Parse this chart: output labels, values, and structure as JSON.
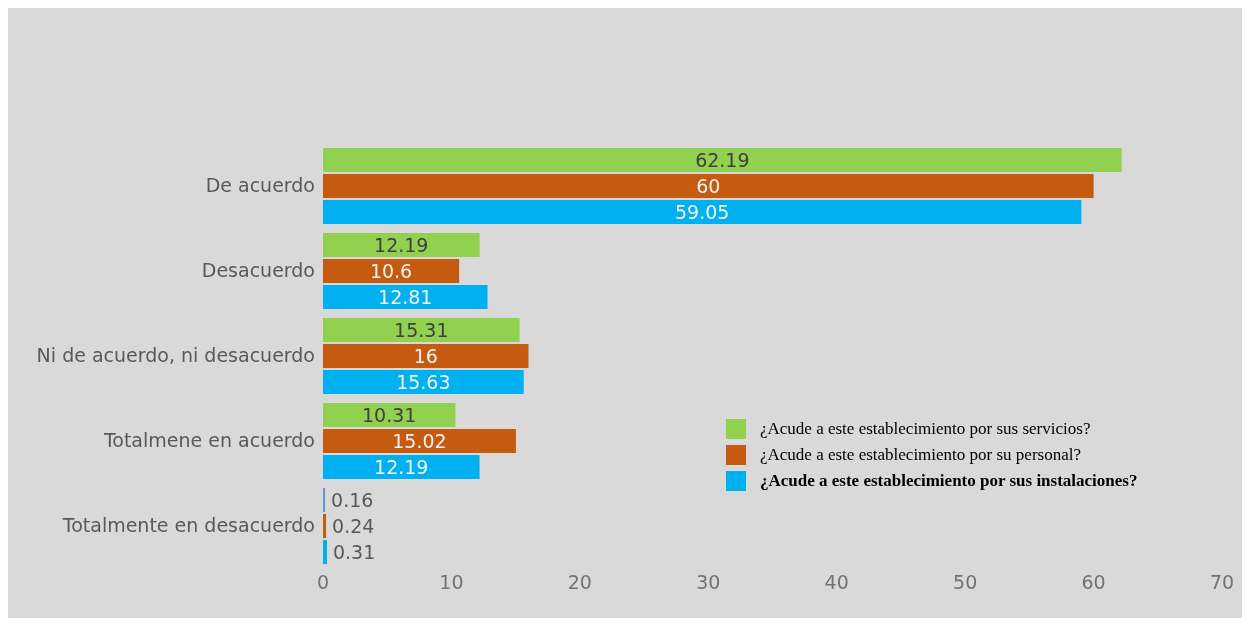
{
  "chart_data": {
    "type": "bar",
    "orientation": "horizontal",
    "categories": [
      "De acuerdo",
      "Desacuerdo",
      "Ni de acuerdo, ni desacuerdo",
      "Totalmene en acuerdo",
      "Totalmente en desacuerdo"
    ],
    "series": [
      {
        "name": "¿Acude a este establecimiento por sus servicios?",
        "color": "#92d050",
        "colors": [
          "#92d050",
          "#92d050",
          "#92d050",
          "#92d050",
          "#5b9bd5"
        ],
        "values": [
          62.19,
          12.19,
          15.31,
          10.31,
          0.16
        ]
      },
      {
        "name": "¿Acude a este establecimiento por su personal?",
        "color": "#c55a11",
        "values": [
          60,
          10.6,
          16,
          15.02,
          0.24
        ]
      },
      {
        "name": "¿Acude a este establecimiento por sus instalaciones?",
        "color": "#00b0f0",
        "values": [
          59.05,
          12.81,
          15.63,
          12.19,
          0.31
        ]
      }
    ],
    "xlim": [
      0,
      70
    ],
    "xticks": [
      0,
      10,
      20,
      30,
      40,
      50,
      60,
      70
    ],
    "legend": "right",
    "data_labels": true
  }
}
